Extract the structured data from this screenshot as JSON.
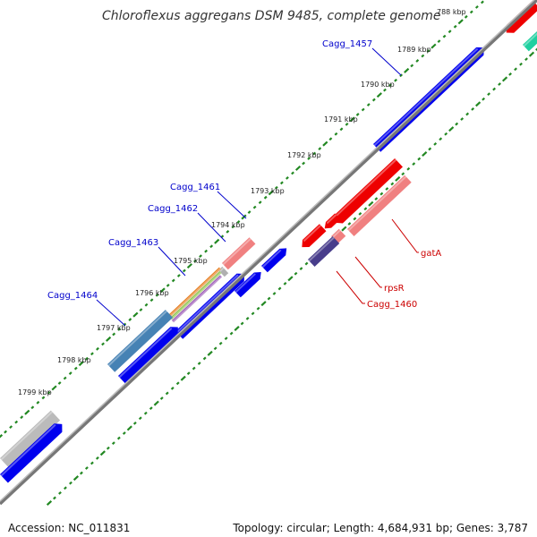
{
  "title": "Chloroflexus aggregans DSM 9485, complete genome",
  "footer": {
    "accession": "Accession: NC_011831",
    "summary": "Topology: circular; Length: 4,684,931 bp; Genes: 3,787"
  },
  "colors": {
    "cds_forward": "#0000ee",
    "cds_reverse": "#ee0000",
    "rna_light": "#f08080",
    "steel": "#4682b4",
    "slate": "#483d8b",
    "gray": "#bbbbbb",
    "teal": "#20d0a0",
    "tick": "#228822",
    "backbone": "#888888",
    "label_blue": "#0000cc",
    "label_red": "#cc0000"
  },
  "ticks": [
    "788 kbp",
    "1789 kbp",
    "1790 kbp",
    "1791 kbp",
    "1792 kbp",
    "1793 kbp",
    "1794 kbp",
    "1795 kbp",
    "1796 kbp",
    "1797 kbp",
    "1798 kbp",
    "1799 kbp"
  ],
  "labels": {
    "cagg_1457": "Cagg_1457",
    "cagg_1461": "Cagg_1461",
    "cagg_1462": "Cagg_1462",
    "cagg_1463": "Cagg_1463",
    "cagg_1464": "Cagg_1464",
    "gatA": "gatA",
    "rpsR": "rpsR",
    "cagg_1460": "Cagg_1460"
  }
}
